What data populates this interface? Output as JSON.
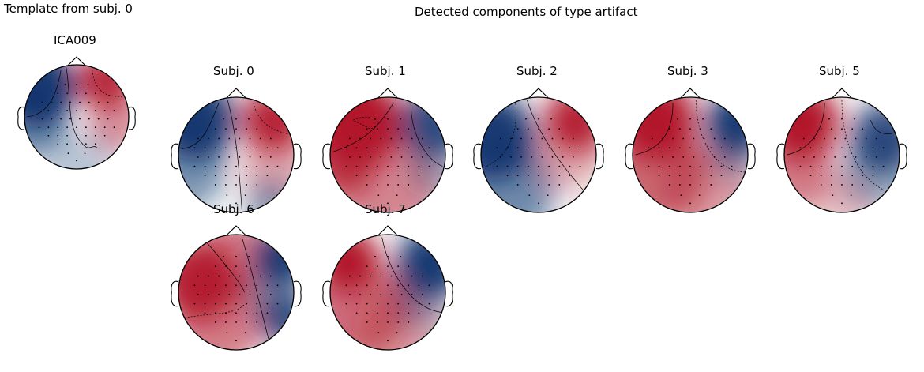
{
  "left_panel": {
    "title": "Template from subj. 0"
  },
  "right_panel": {
    "title": "Detected components of type artifact"
  },
  "colors": {
    "red": "#b2182b",
    "blue": "#08306b",
    "neutral": "#f7f7f7",
    "outline": "#000000",
    "sensor": "#000000"
  },
  "template_map": {
    "label": "ICA009",
    "colormap": "RdBu_r"
  },
  "maps": [
    {
      "label": "Subj. 0"
    },
    {
      "label": "Subj. 1"
    },
    {
      "label": "Subj. 2"
    },
    {
      "label": "Subj. 3"
    },
    {
      "label": "Subj. 5"
    },
    {
      "label": "Subj. 6"
    },
    {
      "label": "Subj. 7"
    }
  ]
}
